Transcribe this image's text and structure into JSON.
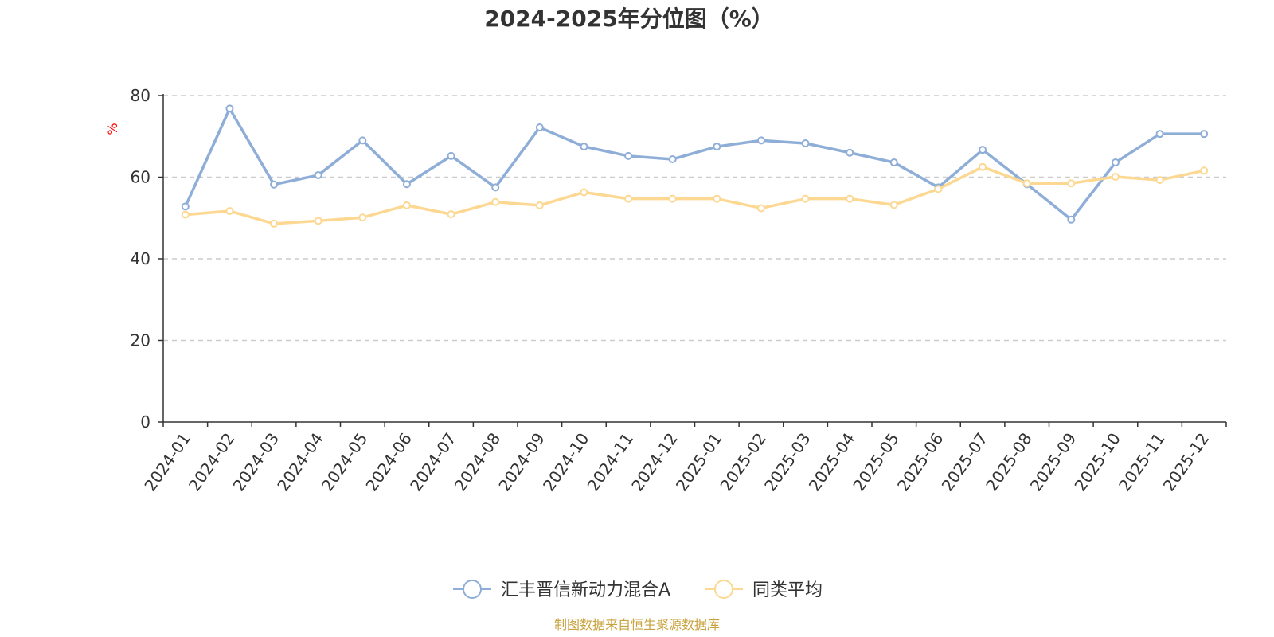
{
  "chart_data": {
    "type": "line",
    "title": "2024-2025年分位图（%）",
    "ylabel": "%",
    "xlabel": "",
    "ylim": [
      0,
      80
    ],
    "yticks": [
      0,
      20,
      40,
      60,
      80
    ],
    "grid": true,
    "legend_position": "bottom-center",
    "categories": [
      "2024-01",
      "2024-02",
      "2024-03",
      "2024-04",
      "2024-05",
      "2024-06",
      "2024-07",
      "2024-08",
      "2024-09",
      "2024-10",
      "2024-11",
      "2024-12",
      "2025-01",
      "2025-02",
      "2025-03",
      "2025-04",
      "2025-05",
      "2025-06",
      "2025-07",
      "2025-08",
      "2025-09",
      "2025-10",
      "2025-11",
      "2025-12"
    ],
    "series": [
      {
        "name": "汇丰晋信新动力混合A",
        "color": "#8eaed8",
        "values": [
          52.8,
          76.8,
          58.2,
          60.5,
          69.0,
          58.3,
          65.2,
          57.5,
          72.2,
          67.5,
          65.2,
          64.4,
          67.5,
          69.0,
          68.3,
          66.0,
          63.6,
          57.5,
          66.7,
          58.3,
          49.6,
          63.6,
          70.6,
          70.6
        ]
      },
      {
        "name": "同类平均",
        "color": "#fcd893",
        "values": [
          50.8,
          51.7,
          48.6,
          49.3,
          50.1,
          53.1,
          50.9,
          53.9,
          53.1,
          56.3,
          54.7,
          54.7,
          54.7,
          52.4,
          54.7,
          54.7,
          53.2,
          57.1,
          62.5,
          58.5,
          58.5,
          60.1,
          59.3,
          61.6
        ]
      }
    ]
  },
  "source_text": "制图数据来自恒生聚源数据库"
}
